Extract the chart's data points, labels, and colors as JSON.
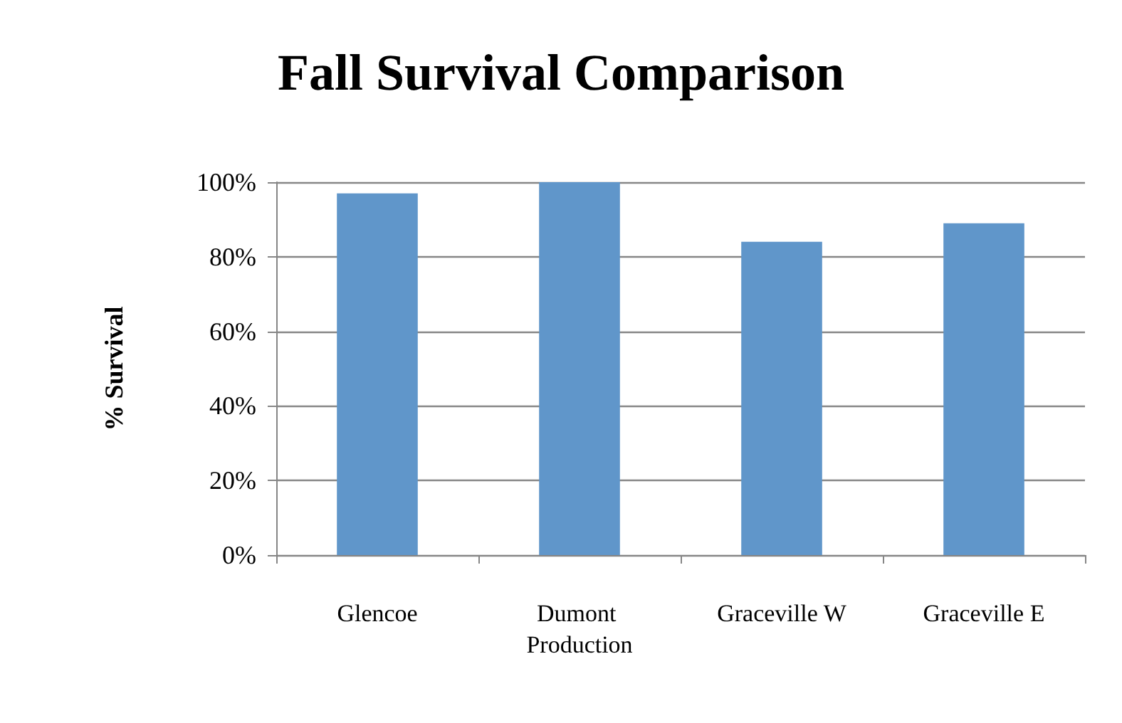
{
  "chart_data": {
    "type": "bar",
    "title": "Fall Survival Comparison",
    "ylabel": "% Survival",
    "categories": [
      "Glencoe",
      "Dumont Production",
      "Graceville W",
      "Graceville E"
    ],
    "values": [
      97,
      100,
      84,
      89
    ],
    "color": "#6096ca",
    "ylim": [
      0,
      100
    ],
    "yticks": [
      {
        "value": 0,
        "label": "0%"
      },
      {
        "value": 20,
        "label": "20%"
      },
      {
        "value": 40,
        "label": "40%"
      },
      {
        "value": 60,
        "label": "60%"
      },
      {
        "value": 80,
        "label": "80%"
      },
      {
        "value": 100,
        "label": "100%"
      }
    ],
    "grid": "y"
  }
}
